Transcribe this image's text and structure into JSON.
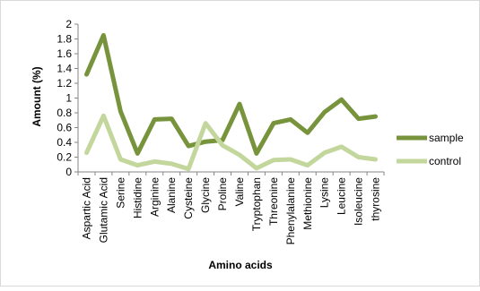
{
  "chart_data": {
    "type": "line",
    "title": "",
    "xlabel": "Amino acids",
    "ylabel": "Amount (%)",
    "ylim": [
      0,
      2
    ],
    "ytick_step": 0.2,
    "ytick_labels": [
      "0",
      "0.2",
      "0.4",
      "0.6",
      "0.8",
      "1",
      "1.2",
      "1.4",
      "1.6",
      "1.8",
      "2"
    ],
    "grid": false,
    "legend_position": "right",
    "categories": [
      "Aspartic Acid",
      "Glutamic Acid",
      "Serine",
      "Histidine",
      "Arginine",
      "Alanine",
      "Cysteine",
      "Glycine",
      "Proline",
      "Valine",
      "Tryptophan",
      "Threonine",
      "Phenylalanine",
      "Methionine",
      "Lysine",
      "Leucine",
      "Isoleucine",
      "thyrosine"
    ],
    "series": [
      {
        "name": "sample",
        "color": "#77933c",
        "values": [
          1.32,
          1.85,
          0.82,
          0.25,
          0.71,
          0.72,
          0.35,
          0.41,
          0.43,
          0.92,
          0.25,
          0.66,
          0.71,
          0.53,
          0.81,
          0.98,
          0.72,
          0.75
        ]
      },
      {
        "name": "control",
        "color": "#c3d69b",
        "values": [
          0.26,
          0.76,
          0.17,
          0.09,
          0.14,
          0.11,
          0.04,
          0.66,
          0.36,
          0.23,
          0.05,
          0.16,
          0.17,
          0.09,
          0.26,
          0.34,
          0.2,
          0.17
        ]
      }
    ]
  }
}
